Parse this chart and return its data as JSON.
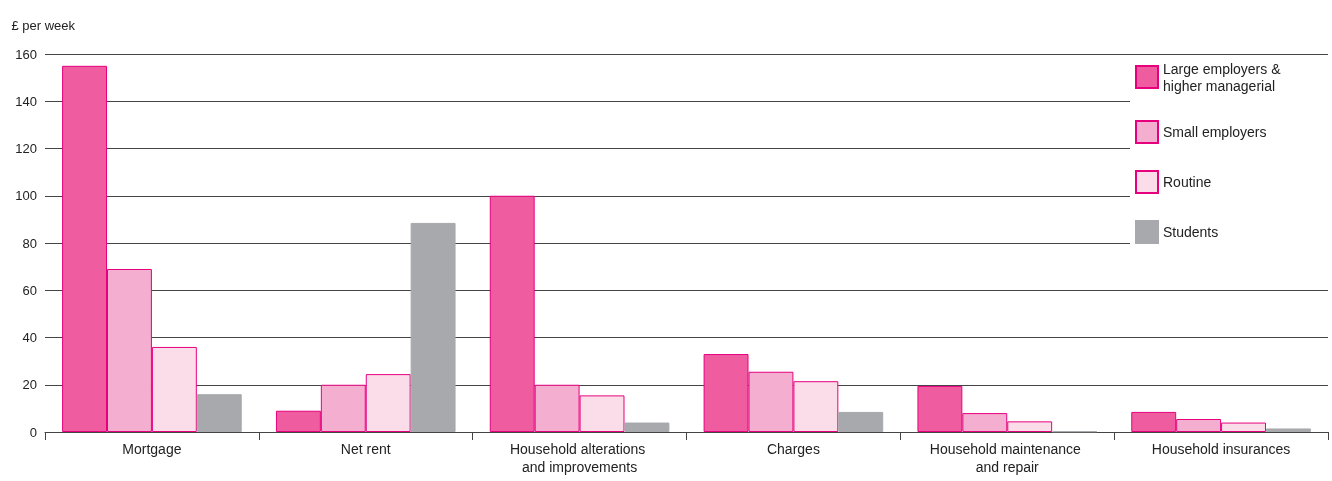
{
  "chart_data": {
    "type": "bar",
    "ylabel": "£ per week",
    "categories": [
      "Mortgage",
      "Net rent",
      "Household alterations and improvements",
      "Charges",
      "Household maintenance and repair",
      "Household insurances"
    ],
    "series": [
      {
        "name": "Large employers & higher managerial",
        "color": "#f05ca0",
        "values": [
          155,
          9,
          100,
          33,
          19.5,
          8.5
        ]
      },
      {
        "name": "Small employers",
        "color": "#f4aed0",
        "values": [
          69,
          20,
          20,
          25.5,
          8,
          5.5
        ]
      },
      {
        "name": "Routine",
        "color": "#fbdde9",
        "values": [
          36,
          24.5,
          15.5,
          21.5,
          4.5,
          4
        ]
      },
      {
        "name": "Students",
        "color": "#a7a9ac",
        "values": [
          16,
          88.5,
          4,
          8.5,
          0.3,
          1.5
        ]
      }
    ],
    "ylim": [
      0,
      160
    ],
    "yticks": [
      0,
      20,
      40,
      60,
      80,
      100,
      120,
      140,
      160
    ],
    "grid": "y",
    "legend": "top right"
  }
}
